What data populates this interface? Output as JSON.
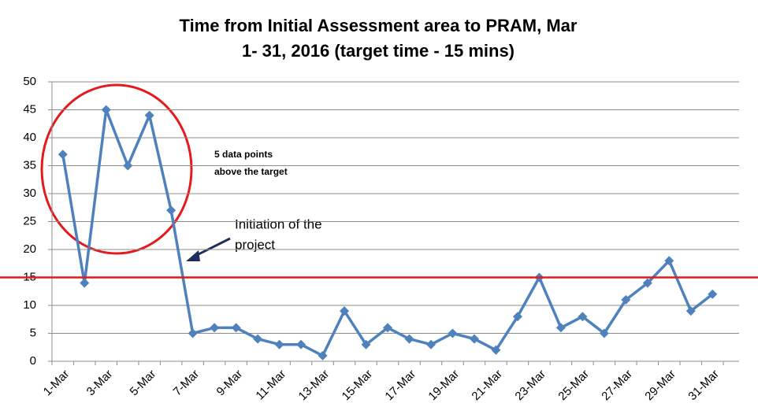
{
  "chart_data": {
    "type": "line",
    "title": [
      "Time from Initial Assessment area to PRAM, Mar",
      "1- 31, 2016 (target time - 15 mins)"
    ],
    "categories": [
      "1-Mar",
      null,
      "3-Mar",
      null,
      "5-Mar",
      null,
      "7-Mar",
      null,
      "9-Mar",
      null,
      "11-Mar",
      null,
      "13-Mar",
      null,
      "15-Mar",
      null,
      "17-Mar",
      null,
      "19-Mar",
      null,
      "21-Mar",
      null,
      "23-Mar",
      null,
      "25-Mar",
      null,
      "27-Mar",
      null,
      "29-Mar",
      null,
      "31-Mar"
    ],
    "values": [
      37,
      14,
      45,
      35,
      44,
      27,
      5,
      6,
      6,
      4,
      3,
      3,
      1,
      9,
      3,
      6,
      4,
      3,
      5,
      4,
      2,
      8,
      15,
      6,
      8,
      5,
      11,
      14,
      18,
      9,
      12
    ],
    "color": "#4f81bd",
    "ylim": [
      0,
      50
    ],
    "yticks": [
      0,
      5,
      10,
      15,
      20,
      25,
      30,
      35,
      40,
      45,
      50
    ],
    "grid": true,
    "target": 15,
    "target_color": "#e41a1c",
    "annotations": [
      [
        "5 data points",
        "above the target"
      ],
      [
        "Initiation of the",
        "project"
      ]
    ]
  }
}
